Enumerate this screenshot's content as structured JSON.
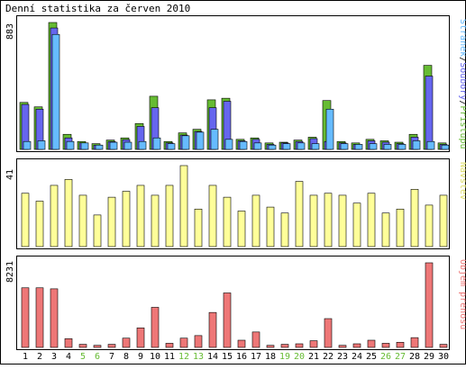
{
  "title": "Denní statistika za červen 2010",
  "colors": {
    "frame": "#000000",
    "background": "#ffffff",
    "hits_fill": "#66bb33",
    "files_fill": "#6666ee",
    "pages_fill": "#66bbff",
    "visits_fill": "#ffff99",
    "volume_fill": "#ee7777",
    "weekday_label": "#000000",
    "weekend_label": "#66bb33"
  },
  "chart_data": [
    {
      "type": "bar",
      "title": "Stránek/Soubory/Přístupů",
      "ymax_label": "883",
      "legend": [
        {
          "text": "Stránek",
          "color": "#66bbff"
        },
        {
          "text": "/",
          "color": "#000000"
        },
        {
          "text": "Soubory",
          "color": "#6666ee"
        },
        {
          "text": "/",
          "color": "#000000"
        },
        {
          "text": "Přístupů",
          "color": "#66bb33"
        }
      ],
      "ylim": [
        0,
        883
      ],
      "categories": [
        "1",
        "2",
        "3",
        "4",
        "5",
        "6",
        "7",
        "8",
        "9",
        "10",
        "11",
        "12",
        "13",
        "14",
        "15",
        "16",
        "17",
        "18",
        "19",
        "20",
        "21",
        "22",
        "23",
        "24",
        "25",
        "26",
        "27",
        "28",
        "29",
        "30"
      ],
      "weekend": [
        false,
        false,
        false,
        false,
        true,
        true,
        false,
        false,
        false,
        false,
        false,
        true,
        true,
        false,
        false,
        false,
        false,
        false,
        true,
        true,
        false,
        false,
        false,
        false,
        false,
        true,
        true,
        false,
        false,
        false
      ],
      "series": [
        {
          "name": "Přístupů",
          "color": "#66bb33",
          "values": [
            327,
            296,
            883,
            105,
            55,
            40,
            65,
            80,
            180,
            370,
            55,
            115,
            140,
            345,
            356,
            70,
            80,
            45,
            50,
            65,
            85,
            340,
            55,
            45,
            70,
            60,
            50,
            105,
            585,
            45
          ]
        },
        {
          "name": "Soubory",
          "color": "#6666ee",
          "values": [
            313,
            280,
            845,
            80,
            45,
            30,
            55,
            68,
            160,
            290,
            45,
            100,
            125,
            290,
            335,
            60,
            70,
            35,
            45,
            55,
            75,
            55,
            45,
            35,
            60,
            50,
            40,
            85,
            510,
            35
          ]
        },
        {
          "name": "Stránek",
          "color": "#66bbff",
          "values": [
            55,
            60,
            800,
            55,
            45,
            30,
            50,
            50,
            55,
            80,
            40,
            95,
            120,
            140,
            70,
            55,
            45,
            30,
            40,
            45,
            40,
            280,
            40,
            35,
            40,
            35,
            35,
            60,
            55,
            30
          ]
        }
      ]
    },
    {
      "type": "bar",
      "title": "Návštěv",
      "ymax_label": "41",
      "ylim": [
        0,
        41
      ],
      "legend": [
        {
          "text": "Návštěv",
          "color": "#dddd66"
        }
      ],
      "series": [
        {
          "name": "Návštěv",
          "color": "#ffff99",
          "values": [
            27,
            23,
            31,
            34,
            26,
            16,
            25,
            28,
            31,
            26,
            31,
            41,
            19,
            31,
            25,
            18,
            26,
            20,
            17,
            33,
            26,
            27,
            26,
            22,
            27,
            17,
            19,
            29,
            21,
            26
          ]
        }
      ]
    },
    {
      "type": "bar",
      "title": "Objem přenosu",
      "ymax_label": "8231",
      "ylim": [
        0,
        8231
      ],
      "legend": [
        {
          "text": "Objem přenosu",
          "color": "#ee7777"
        }
      ],
      "series": [
        {
          "name": "Objem přenosu",
          "color": "#ee7777",
          "values": [
            5800,
            5800,
            5700,
            850,
            300,
            200,
            300,
            900,
            1900,
            3900,
            400,
            900,
            1150,
            3400,
            5300,
            700,
            1500,
            200,
            300,
            350,
            650,
            2800,
            200,
            350,
            700,
            400,
            500,
            950,
            8231,
            300
          ]
        }
      ]
    }
  ]
}
